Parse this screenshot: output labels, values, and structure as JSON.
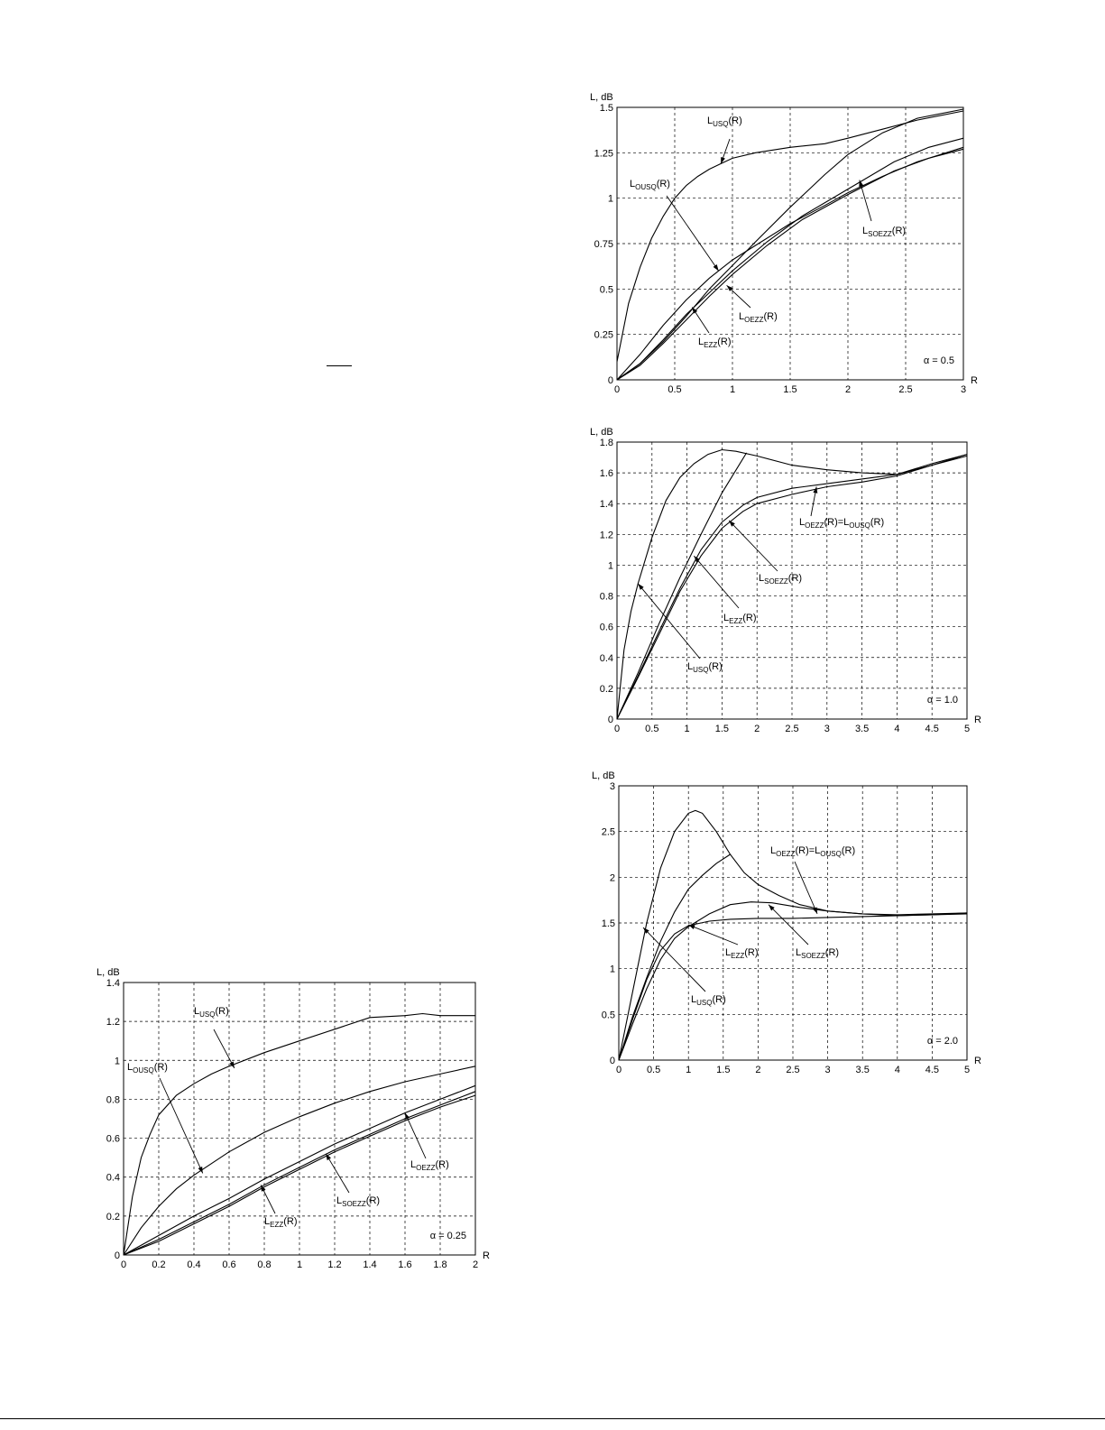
{
  "chart_data": [
    {
      "id": "a05",
      "type": "line",
      "xlabel": "R",
      "ylabel": "L, dB",
      "xlim": [
        0,
        3
      ],
      "ylim": [
        0,
        1.5
      ],
      "xticks": [
        0,
        0.5,
        1,
        1.5,
        2,
        2.5,
        3
      ],
      "yticks": [
        0,
        0.25,
        0.5,
        0.75,
        1,
        1.25,
        1.5
      ],
      "xtick_labels": [
        "0",
        "0.5",
        "1",
        "1.5",
        "2",
        "2.5",
        "3"
      ],
      "ytick_labels": [
        "0",
        "0.25",
        "0.5",
        "0.75",
        "1",
        "1.25",
        "1.5"
      ],
      "grid": true,
      "note": "α = 0.5",
      "series": [
        {
          "name": "LUSQ(R)",
          "x": [
            0,
            0.1,
            0.2,
            0.3,
            0.4,
            0.5,
            0.6,
            0.7,
            0.8,
            0.9,
            1.0,
            1.2,
            1.5,
            1.8,
            2.0,
            2.3,
            2.6,
            3.0
          ],
          "y": [
            0.1,
            0.42,
            0.62,
            0.78,
            0.9,
            1.0,
            1.07,
            1.12,
            1.16,
            1.19,
            1.22,
            1.25,
            1.28,
            1.3,
            1.33,
            1.38,
            1.43,
            1.48
          ]
        },
        {
          "name": "LOUSQ(R)",
          "x": [
            0,
            0.2,
            0.4,
            0.6,
            0.8,
            1.0,
            1.2,
            1.5,
            1.8,
            2.0,
            2.3,
            2.6,
            3.0
          ],
          "y": [
            0,
            0.14,
            0.3,
            0.44,
            0.56,
            0.66,
            0.74,
            0.86,
            0.96,
            1.03,
            1.12,
            1.2,
            1.28
          ]
        },
        {
          "name": "LOEZZ(R)",
          "x": [
            0,
            0.2,
            0.4,
            0.6,
            0.8,
            1.0,
            1.3,
            1.6,
            2.0,
            2.4,
            2.7,
            3.0
          ],
          "y": [
            0,
            0.09,
            0.22,
            0.36,
            0.48,
            0.6,
            0.76,
            0.9,
            1.05,
            1.2,
            1.28,
            1.33
          ]
        },
        {
          "name": "LSOEZZ(R)",
          "x": [
            0,
            0.2,
            0.4,
            0.6,
            0.8,
            1.0,
            1.3,
            1.6,
            2.0,
            2.4,
            2.7,
            3.0
          ],
          "y": [
            0,
            0.08,
            0.2,
            0.33,
            0.46,
            0.58,
            0.74,
            0.88,
            1.02,
            1.15,
            1.22,
            1.27
          ]
        },
        {
          "name": "LEZZ(R)",
          "x": [
            0,
            0.2,
            0.4,
            0.6,
            0.8,
            1.0,
            1.2,
            1.5,
            1.8,
            2.0,
            2.3,
            2.6,
            3.0
          ],
          "y": [
            0,
            0.09,
            0.21,
            0.35,
            0.5,
            0.63,
            0.76,
            0.95,
            1.13,
            1.24,
            1.36,
            1.44,
            1.49
          ]
        }
      ],
      "annotations": [
        {
          "main": "L",
          "sub": "USQ",
          "tail": "(R)"
        },
        {
          "main": "L",
          "sub": "OUSQ",
          "tail": "(R)"
        },
        {
          "main": "L",
          "sub": "SOEZZ",
          "tail": "(R)"
        },
        {
          "main": "L",
          "sub": "OEZZ",
          "tail": "(R)"
        },
        {
          "main": "L",
          "sub": "EZZ",
          "tail": "(R)"
        }
      ]
    },
    {
      "id": "a10",
      "type": "line",
      "xlabel": "R",
      "ylabel": "L, dB",
      "xlim": [
        0,
        5
      ],
      "ylim": [
        0,
        1.8
      ],
      "xticks": [
        0,
        0.5,
        1,
        1.5,
        2,
        2.5,
        3,
        3.5,
        4,
        4.5,
        5
      ],
      "yticks": [
        0,
        0.2,
        0.4,
        0.6,
        0.8,
        1,
        1.2,
        1.4,
        1.6,
        1.8
      ],
      "xtick_labels": [
        "0",
        "0.5",
        "1",
        "1.5",
        "2",
        "2.5",
        "3",
        "3.5",
        "4",
        "4.5",
        "5"
      ],
      "ytick_labels": [
        "0",
        "0.2",
        "0.4",
        "0.6",
        "0.8",
        "1",
        "1.2",
        "1.4",
        "1.6",
        "1.8"
      ],
      "grid": true,
      "note": "α = 1.0",
      "series": [
        {
          "name": "LUSQ(R)",
          "x": [
            0,
            0.1,
            0.2,
            0.3,
            0.5,
            0.7,
            0.9,
            1.1,
            1.3,
            1.5,
            1.7,
            2.0,
            2.5,
            3.0,
            3.5,
            4.0,
            4.5,
            5.0
          ],
          "y": [
            0,
            0.45,
            0.7,
            0.88,
            1.18,
            1.42,
            1.57,
            1.66,
            1.72,
            1.75,
            1.74,
            1.71,
            1.65,
            1.62,
            1.6,
            1.59,
            1.65,
            1.72
          ]
        },
        {
          "name": "LEZZ(R)",
          "x": [
            0,
            0.3,
            0.6,
            0.9,
            1.2,
            1.5,
            1.85
          ],
          "y": [
            0,
            0.3,
            0.62,
            0.92,
            1.2,
            1.47,
            1.73
          ]
        },
        {
          "name": "LSOEZZ(R)",
          "x": [
            0,
            0.3,
            0.6,
            0.9,
            1.2,
            1.5,
            1.8,
            2.0,
            2.5,
            3.0,
            3.5,
            4.0,
            4.5,
            5.0
          ],
          "y": [
            0,
            0.28,
            0.57,
            0.85,
            1.1,
            1.28,
            1.39,
            1.44,
            1.5,
            1.53,
            1.56,
            1.59,
            1.66,
            1.72
          ]
        },
        {
          "name": "LOEZZ(R)=LOUSQ(R)",
          "x": [
            0,
            0.3,
            0.6,
            0.9,
            1.2,
            1.5,
            1.8,
            2.0,
            2.5,
            3.0,
            3.5,
            4.0,
            4.5,
            5.0
          ],
          "y": [
            0,
            0.27,
            0.55,
            0.83,
            1.06,
            1.24,
            1.35,
            1.4,
            1.46,
            1.51,
            1.54,
            1.58,
            1.65,
            1.71
          ]
        }
      ],
      "annotations": [
        {
          "main": "L",
          "sub": "OEZZ",
          "tail": "(R)=L",
          "sub2": "OUSQ",
          "tail2": "(R)"
        },
        {
          "main": "L",
          "sub": "SOEZZ",
          "tail": "(R)"
        },
        {
          "main": "L",
          "sub": "EZZ",
          "tail": "(R)"
        },
        {
          "main": "L",
          "sub": "USQ",
          "tail": "(R)"
        }
      ]
    },
    {
      "id": "a20",
      "type": "line",
      "xlabel": "R",
      "ylabel": "L, dB",
      "xlim": [
        0,
        5
      ],
      "ylim": [
        0,
        3
      ],
      "xticks": [
        0,
        0.5,
        1,
        1.5,
        2,
        2.5,
        3,
        3.5,
        4,
        4.5,
        5
      ],
      "yticks": [
        0,
        0.5,
        1,
        1.5,
        2,
        2.5,
        3
      ],
      "xtick_labels": [
        "0",
        "0.5",
        "1",
        "1.5",
        "2",
        "2.5",
        "3",
        "3.5",
        "4",
        "4.5",
        "5"
      ],
      "ytick_labels": [
        "0",
        "0.5",
        "1",
        "1.5",
        "2",
        "2.5",
        "3"
      ],
      "grid": true,
      "note": "α = 2.0",
      "series": [
        {
          "name": "LUSQ(R)",
          "x": [
            0,
            0.2,
            0.4,
            0.6,
            0.8,
            1.0,
            1.1,
            1.2,
            1.4,
            1.6,
            1.8,
            2.0,
            2.3,
            2.6,
            3.0,
            3.5,
            4.0,
            4.5,
            5.0
          ],
          "y": [
            0,
            0.75,
            1.5,
            2.1,
            2.5,
            2.7,
            2.73,
            2.7,
            2.5,
            2.25,
            2.05,
            1.92,
            1.8,
            1.7,
            1.63,
            1.6,
            1.59,
            1.6,
            1.61
          ]
        },
        {
          "name": "LEZZ(R)",
          "x": [
            0,
            0.2,
            0.4,
            0.6,
            0.8,
            1.0,
            1.2,
            1.4,
            1.6
          ],
          "y": [
            0,
            0.48,
            0.9,
            1.3,
            1.62,
            1.87,
            2.02,
            2.15,
            2.25
          ]
        },
        {
          "name": "LSOEZZ(R)",
          "x": [
            0,
            0.2,
            0.4,
            0.6,
            0.8,
            1.0,
            1.3,
            1.6,
            1.9,
            2.2,
            2.6,
            3.0,
            3.5,
            4.0,
            4.5,
            5.0
          ],
          "y": [
            0,
            0.4,
            0.78,
            1.1,
            1.33,
            1.46,
            1.6,
            1.7,
            1.73,
            1.72,
            1.67,
            1.63,
            1.6,
            1.58,
            1.59,
            1.61
          ]
        },
        {
          "name": "LOEZZ(R)=LOUSQ(R)",
          "x": [
            0,
            0.2,
            0.4,
            0.6,
            0.8,
            1.0,
            1.3,
            1.6,
            2.0,
            2.5,
            3.0,
            3.5,
            4.0,
            4.5,
            5.0
          ],
          "y": [
            0,
            0.45,
            0.88,
            1.2,
            1.38,
            1.47,
            1.52,
            1.54,
            1.55,
            1.55,
            1.56,
            1.57,
            1.58,
            1.59,
            1.6
          ]
        }
      ],
      "annotations": [
        {
          "main": "L",
          "sub": "OEZZ",
          "tail": "(R)=L",
          "sub2": "OUSQ",
          "tail2": "(R)"
        },
        {
          "main": "L",
          "sub": "EZZ",
          "tail": "(R)"
        },
        {
          "main": "L",
          "sub": "SOEZZ",
          "tail": "(R)"
        },
        {
          "main": "L",
          "sub": "USQ",
          "tail": "(R)"
        }
      ]
    },
    {
      "id": "a025",
      "type": "line",
      "xlabel": "R",
      "ylabel": "L, dB",
      "xlim": [
        0,
        2
      ],
      "ylim": [
        0,
        1.4
      ],
      "xticks": [
        0,
        0.2,
        0.4,
        0.6,
        0.8,
        1,
        1.2,
        1.4,
        1.6,
        1.8,
        2
      ],
      "yticks": [
        0,
        0.2,
        0.4,
        0.6,
        0.8,
        1,
        1.2,
        1.4
      ],
      "xtick_labels": [
        "0",
        "0.2",
        "0.4",
        "0.6",
        "0.8",
        "1",
        "1.2",
        "1.4",
        "1.6",
        "1.8",
        "2"
      ],
      "ytick_labels": [
        "0",
        "0.2",
        "0.4",
        "0.6",
        "0.8",
        "1",
        "1.2",
        "1.4"
      ],
      "grid": true,
      "note": "α = 0.25",
      "series": [
        {
          "name": "LUSQ(R)",
          "x": [
            0,
            0.05,
            0.1,
            0.15,
            0.2,
            0.3,
            0.4,
            0.5,
            0.6,
            0.8,
            1.0,
            1.2,
            1.4,
            1.6,
            1.7,
            1.8,
            2.0
          ],
          "y": [
            0,
            0.3,
            0.5,
            0.62,
            0.72,
            0.82,
            0.88,
            0.93,
            0.97,
            1.04,
            1.1,
            1.16,
            1.22,
            1.23,
            1.24,
            1.23,
            1.23
          ]
        },
        {
          "name": "LOUSQ(R)",
          "x": [
            0,
            0.1,
            0.2,
            0.3,
            0.4,
            0.6,
            0.8,
            1.0,
            1.2,
            1.4,
            1.6,
            1.8,
            2.0
          ],
          "y": [
            0,
            0.14,
            0.25,
            0.34,
            0.41,
            0.53,
            0.63,
            0.71,
            0.78,
            0.84,
            0.89,
            0.93,
            0.97
          ]
        },
        {
          "name": "LOEZZ(R)",
          "x": [
            0,
            0.2,
            0.4,
            0.6,
            0.8,
            1.0,
            1.2,
            1.4,
            1.6,
            1.8,
            2.0
          ],
          "y": [
            0,
            0.1,
            0.2,
            0.29,
            0.39,
            0.48,
            0.57,
            0.65,
            0.73,
            0.8,
            0.87
          ]
        },
        {
          "name": "LSOEZZ(R)",
          "x": [
            0,
            0.2,
            0.4,
            0.6,
            0.8,
            1.0,
            1.2,
            1.4,
            1.6,
            1.8,
            2.0
          ],
          "y": [
            0,
            0.08,
            0.17,
            0.26,
            0.36,
            0.45,
            0.54,
            0.62,
            0.7,
            0.77,
            0.84
          ]
        },
        {
          "name": "LEZZ(R)",
          "x": [
            0,
            0.2,
            0.4,
            0.6,
            0.8,
            1.0,
            1.2,
            1.4,
            1.6,
            1.8,
            2.0
          ],
          "y": [
            0,
            0.07,
            0.16,
            0.25,
            0.35,
            0.44,
            0.53,
            0.61,
            0.69,
            0.76,
            0.82
          ]
        }
      ],
      "annotations": [
        {
          "main": "L",
          "sub": "USQ",
          "tail": "(R)"
        },
        {
          "main": "L",
          "sub": "OUSQ",
          "tail": "(R)"
        },
        {
          "main": "L",
          "sub": "OEZZ",
          "tail": "(R)"
        },
        {
          "main": "L",
          "sub": "SOEZZ",
          "tail": "(R)"
        },
        {
          "main": "L",
          "sub": "EZZ",
          "tail": "(R)"
        }
      ]
    }
  ]
}
